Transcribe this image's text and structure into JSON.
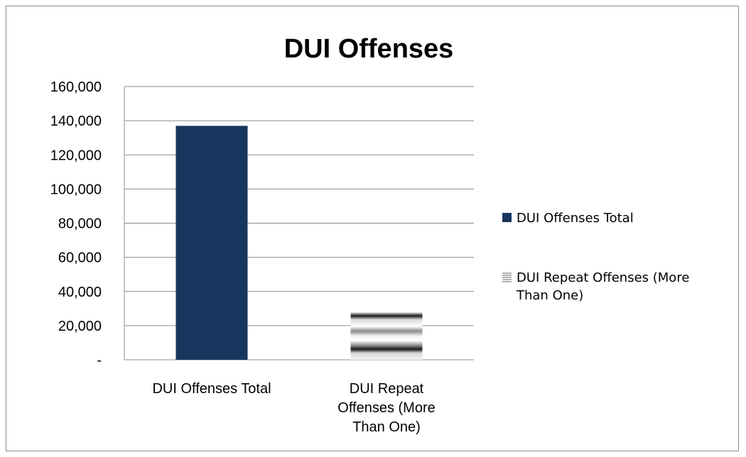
{
  "chart_data": {
    "type": "bar",
    "title": "DUI Offenses",
    "categories": [
      "DUI Offenses Total",
      "DUI Repeat Offenses (More Than One)"
    ],
    "category_label_lines": [
      [
        "DUI Offenses Total"
      ],
      [
        "DUI Repeat",
        "Offenses (More",
        "Than One)"
      ]
    ],
    "series": [
      {
        "name": "DUI Offenses Total",
        "values": [
          137000,
          null
        ],
        "color": "#17365d",
        "fill": "solid"
      },
      {
        "name": "DUI Repeat Offenses (More Than One)",
        "values": [
          null,
          28000
        ],
        "color": "#7f7f7f",
        "fill": "horizontal-stripe gradient"
      }
    ],
    "legend_lines": [
      [
        "DUI Offenses Total"
      ],
      [
        "DUI Repeat Offenses (More",
        "Than One)"
      ]
    ],
    "yticks": [
      "-",
      "20,000",
      "40,000",
      "60,000",
      "80,000",
      "100,000",
      "120,000",
      "140,000",
      "160,000"
    ],
    "ylim": [
      0,
      160000
    ],
    "xlabel": "",
    "ylabel": "",
    "grid": true,
    "legend_position": "right"
  }
}
